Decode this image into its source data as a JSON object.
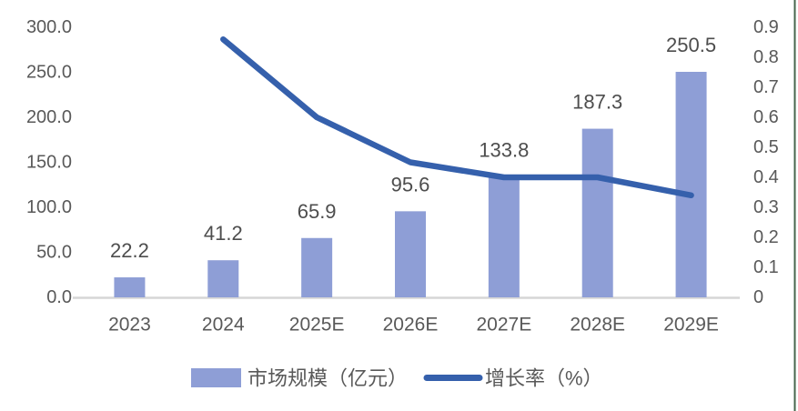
{
  "chart_data": {
    "type": "bar",
    "combo": "bar-line",
    "title": "",
    "categories": [
      "2023",
      "2024",
      "2025E",
      "2026E",
      "2027E",
      "2028E",
      "2029E"
    ],
    "series": [
      {
        "name": "市场规模（亿元）",
        "type": "bar",
        "axis": "left",
        "values": [
          22.2,
          41.2,
          65.9,
          95.6,
          133.8,
          187.3,
          250.5
        ],
        "data_labels": [
          "22.2",
          "41.2",
          "65.9",
          "95.6",
          "133.8",
          "187.3",
          "250.5"
        ]
      },
      {
        "name": "增长率（%）",
        "type": "line",
        "axis": "right",
        "values": [
          null,
          0.86,
          0.6,
          0.45,
          0.4,
          0.4,
          0.34
        ]
      }
    ],
    "left_axis": {
      "min": 0,
      "max": 300,
      "step": 50,
      "ticks": [
        "300.0",
        "250.0",
        "200.0",
        "150.0",
        "100.0",
        "50.0",
        "0.0"
      ]
    },
    "right_axis": {
      "min": 0,
      "max": 0.9,
      "step": 0.1,
      "ticks": [
        "0.9",
        "0.8",
        "0.7",
        "0.6",
        "0.5",
        "0.4",
        "0.3",
        "0.2",
        "0.1",
        "0"
      ]
    },
    "legend": {
      "position": "bottom",
      "entries": [
        {
          "label": "市场规模（亿元）",
          "swatch": "bar"
        },
        {
          "label": "增长率（%）",
          "swatch": "line"
        }
      ]
    },
    "grid": "off"
  },
  "colors": {
    "bar_fill": "#8E9ED6",
    "line_stroke": "#3560AC",
    "axis_tick_text": "#595959",
    "category_text": "#595959",
    "data_label_text": "#4D4D4D",
    "legend_text": "#595959",
    "x_axis_line": "#D6D6D6",
    "right_edge_line": "#46644B",
    "background": "#FFFFFF"
  }
}
